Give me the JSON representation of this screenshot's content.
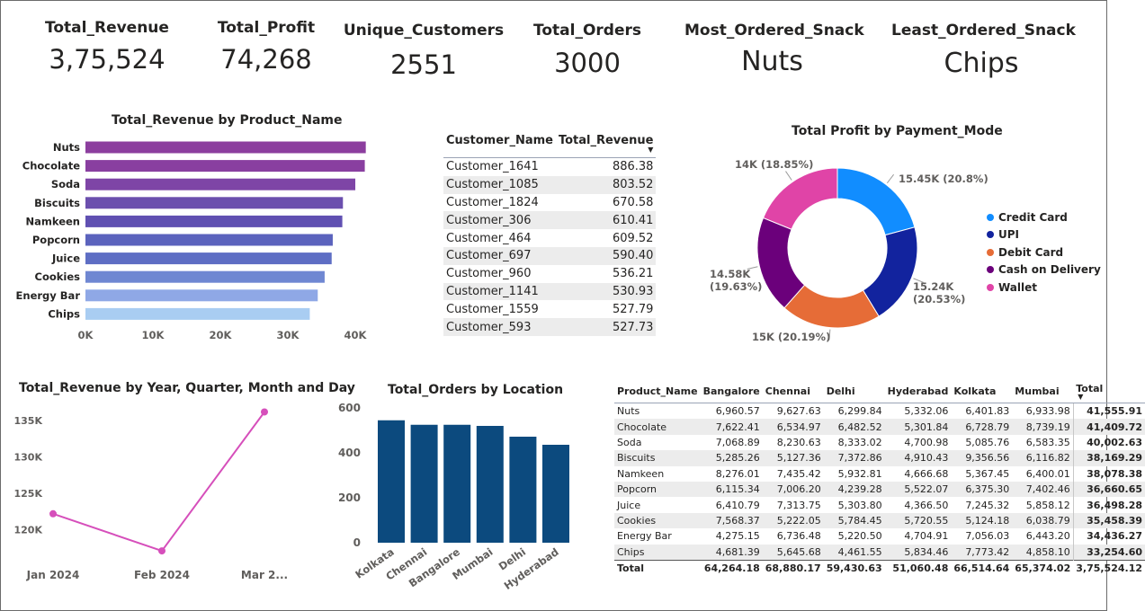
{
  "kpis": [
    {
      "label": "Total_Revenue",
      "value": "3,75,524"
    },
    {
      "label": "Total_Profit",
      "value": "74,268"
    },
    {
      "label": "Unique_Customers",
      "value": "2551"
    },
    {
      "label": "Total_Orders",
      "value": "3000"
    },
    {
      "label": "Most_Ordered_Snack",
      "value": "Nuts"
    },
    {
      "label": "Least_Ordered_Snack",
      "value": "Chips"
    }
  ],
  "colors": {
    "bar_gradient": [
      "#8c3e9e",
      "#893fa0",
      "#7e45a6",
      "#6b4fae",
      "#6050b2",
      "#5b63bd",
      "#5e6ec4",
      "#6f87d2",
      "#8fa8e6",
      "#a9cdf2"
    ],
    "orders_bar": "#0c4a7e",
    "line": "#d64fbb",
    "payment": [
      "#118dff",
      "#12239e",
      "#e66c37",
      "#6b007b",
      "#e044a7"
    ]
  },
  "customer_table": {
    "headers": {
      "name": "Customer_Name",
      "value": "Total_Revenue"
    },
    "rows": [
      {
        "name": "Customer_1641",
        "value": "886.38"
      },
      {
        "name": "Customer_1085",
        "value": "803.52"
      },
      {
        "name": "Customer_1824",
        "value": "670.58"
      },
      {
        "name": "Customer_306",
        "value": "610.41"
      },
      {
        "name": "Customer_464",
        "value": "609.52"
      },
      {
        "name": "Customer_697",
        "value": "590.40"
      },
      {
        "name": "Customer_960",
        "value": "536.21"
      },
      {
        "name": "Customer_1141",
        "value": "530.93"
      },
      {
        "name": "Customer_1559",
        "value": "527.79"
      },
      {
        "name": "Customer_593",
        "value": "527.73"
      }
    ]
  },
  "matrix": {
    "headers": [
      "Product_Name",
      "Bangalore",
      "Chennai",
      "Delhi",
      "Hyderabad",
      "Kolkata",
      "Mumbai",
      "Total"
    ],
    "rows": [
      [
        "Nuts",
        "6,960.57",
        "9,627.63",
        "6,299.84",
        "5,332.06",
        "6,401.83",
        "6,933.98",
        "41,555.91"
      ],
      [
        "Chocolate",
        "7,622.41",
        "6,534.97",
        "6,482.52",
        "5,301.84",
        "6,728.79",
        "8,739.19",
        "41,409.72"
      ],
      [
        "Soda",
        "7,068.89",
        "8,230.63",
        "8,333.02",
        "4,700.98",
        "5,085.76",
        "6,583.35",
        "40,002.63"
      ],
      [
        "Biscuits",
        "5,285.26",
        "5,127.36",
        "7,372.86",
        "4,910.43",
        "9,356.56",
        "6,116.82",
        "38,169.29"
      ],
      [
        "Namkeen",
        "8,276.01",
        "7,435.42",
        "5,932.81",
        "4,666.68",
        "5,367.45",
        "6,400.01",
        "38,078.38"
      ],
      [
        "Popcorn",
        "6,115.34",
        "7,006.20",
        "4,239.28",
        "5,522.07",
        "6,375.30",
        "7,402.46",
        "36,660.65"
      ],
      [
        "Juice",
        "6,410.79",
        "7,313.75",
        "5,303.80",
        "4,366.50",
        "7,245.32",
        "5,858.12",
        "36,498.28"
      ],
      [
        "Cookies",
        "7,568.37",
        "5,222.05",
        "5,784.45",
        "5,720.55",
        "5,124.18",
        "6,038.79",
        "35,458.39"
      ],
      [
        "Energy Bar",
        "4,275.15",
        "6,736.48",
        "5,220.50",
        "4,704.91",
        "7,056.03",
        "6,443.20",
        "34,436.27"
      ],
      [
        "Chips",
        "4,681.39",
        "5,645.68",
        "4,461.55",
        "5,834.46",
        "7,773.42",
        "4,858.10",
        "33,254.60"
      ]
    ],
    "total": [
      "Total",
      "64,264.18",
      "68,880.17",
      "59,430.63",
      "51,060.48",
      "66,514.64",
      "65,374.02",
      "3,75,524.12"
    ]
  },
  "chart_data": [
    {
      "type": "bar",
      "orientation": "horizontal",
      "title": "Total_Revenue by Product_Name",
      "categories": [
        "Nuts",
        "Chocolate",
        "Soda",
        "Biscuits",
        "Namkeen",
        "Popcorn",
        "Juice",
        "Cookies",
        "Energy Bar",
        "Chips"
      ],
      "values": [
        41555.91,
        41409.72,
        40002.63,
        38169.29,
        38078.38,
        36660.65,
        36498.28,
        35458.39,
        34436.27,
        33254.6
      ],
      "xticks": [
        "0K",
        "10K",
        "20K",
        "30K",
        "40K"
      ],
      "xlim": [
        0,
        40000
      ]
    },
    {
      "type": "pie",
      "title": "Total Profit by Payment_Mode",
      "categories": [
        "Credit Card",
        "UPI",
        "Debit Card",
        "Cash on Delivery",
        "Wallet"
      ],
      "values": [
        15450,
        15240,
        15000,
        14580,
        14000
      ],
      "labels": [
        "15.45K (20.8%)",
        "15.24K (20.53%)",
        "15K (20.19%)",
        "14.58K (19.63%)",
        "14K (18.85%)"
      ],
      "legend": "right"
    },
    {
      "type": "line",
      "title": "Total_Revenue by Year, Quarter, Month and Day",
      "categories": [
        "Jan 2024",
        "Feb 2024",
        "Mar 2..."
      ],
      "values": [
        122200,
        117100,
        136200
      ],
      "yticks": [
        "120K",
        "125K",
        "130K",
        "135K"
      ],
      "ylim": [
        116000,
        137000
      ]
    },
    {
      "type": "bar",
      "title": "Total_Orders by Location",
      "categories": [
        "Kolkata",
        "Chennai",
        "Bangalore",
        "Mumbai",
        "Delhi",
        "Hyderabad"
      ],
      "values": [
        545,
        525,
        525,
        520,
        472,
        436
      ],
      "yticks": [
        "0",
        "200",
        "400",
        "600"
      ],
      "ylim": [
        0,
        600
      ]
    }
  ]
}
